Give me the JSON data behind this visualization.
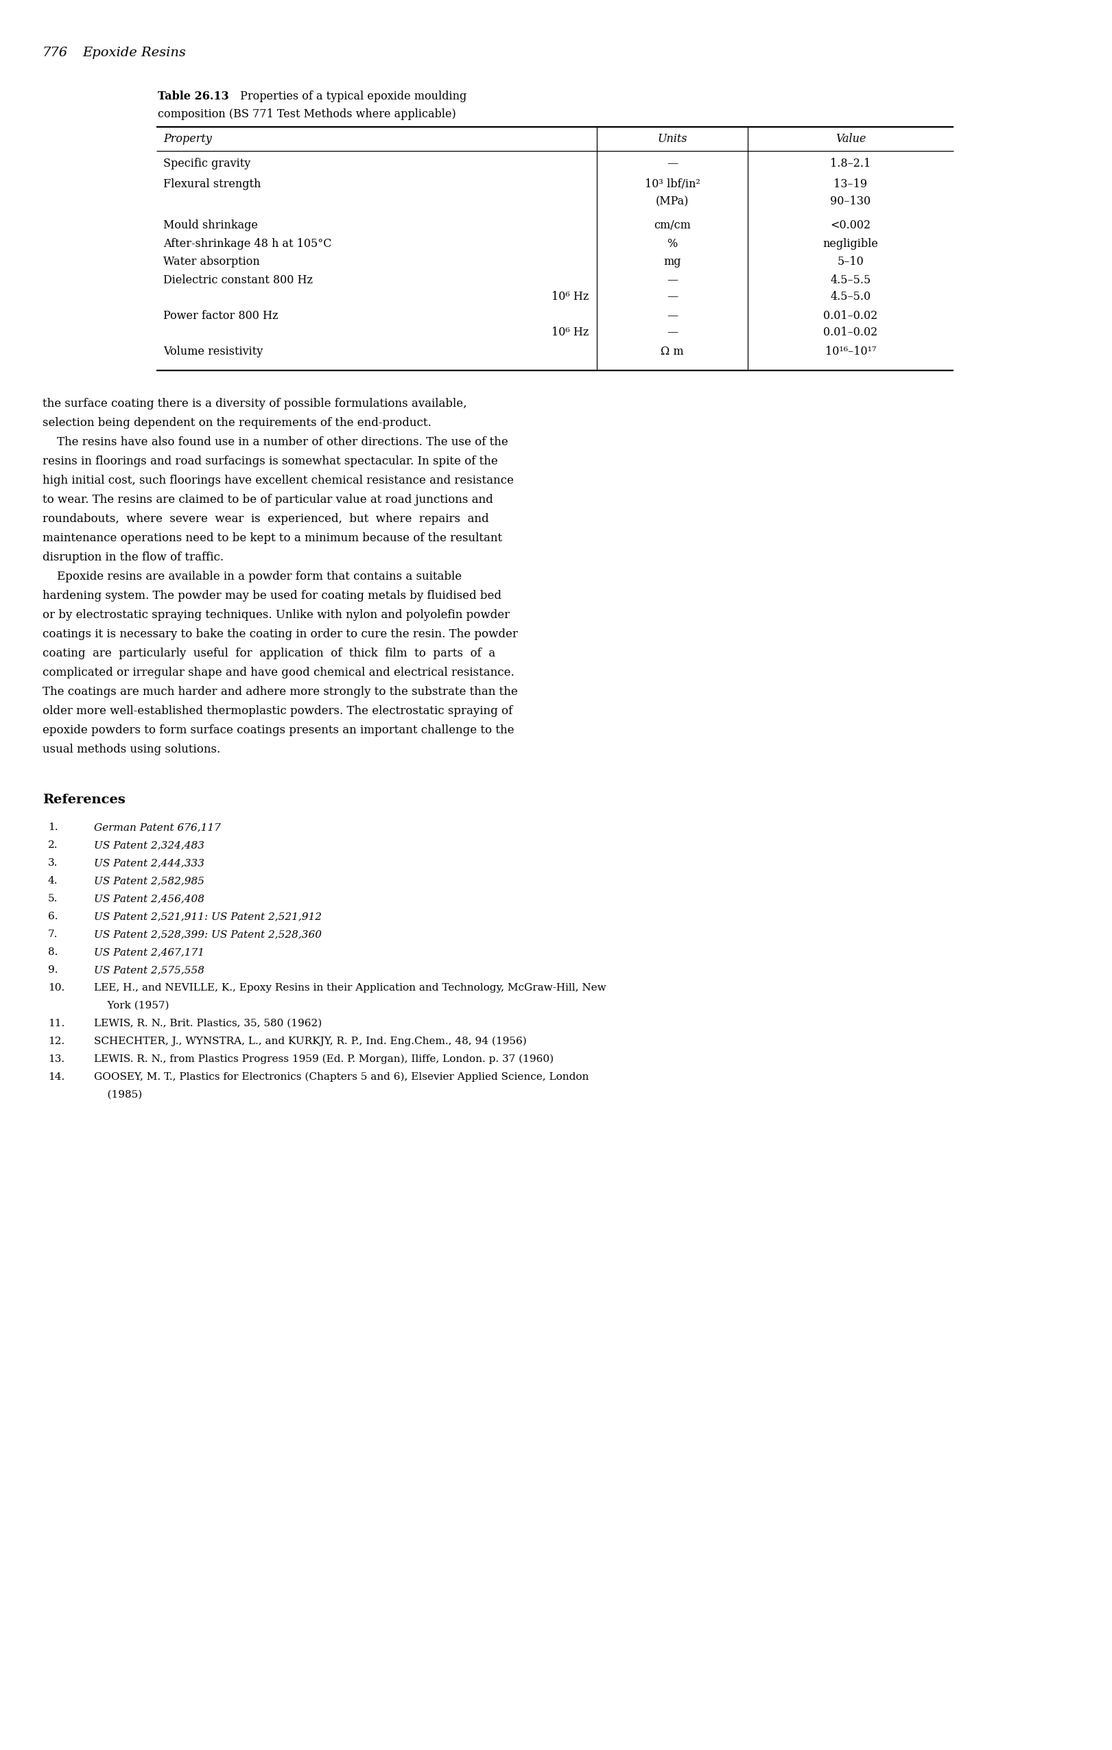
{
  "page_header_num": "776",
  "page_header_title": "Epoxide Resins",
  "table_title": "Table 26.13",
  "table_title_rest": " Properties of a typical epoxide moulding",
  "table_title_line2": "composition (BS 771 Test Methods where applicable)",
  "col_headers": [
    "Property",
    "Units",
    "Value"
  ],
  "table_rows": [
    {
      "prop": "Specific gravity",
      "prop_indent": false,
      "unit": "—",
      "val": "1.8–2.1"
    },
    {
      "prop": "Flexural strength",
      "prop_indent": false,
      "unit": "10³ lbf/in²",
      "val": "13–19"
    },
    {
      "prop": "",
      "prop_indent": false,
      "unit": "(MPa)",
      "val": "90–130"
    },
    {
      "prop": "Mould shrinkage",
      "prop_indent": false,
      "unit": "cm/cm",
      "val": "<0.002"
    },
    {
      "prop": "After-shrinkage 48 h at 105°C",
      "prop_indent": false,
      "unit": "%",
      "val": "negligible"
    },
    {
      "prop": "Water absorption",
      "prop_indent": false,
      "unit": "mg",
      "val": "5–10"
    },
    {
      "prop": "Dielectric constant 800 Hz",
      "prop_indent": false,
      "unit": "—",
      "val": "4.5–5.5"
    },
    {
      "prop": "10⁶ Hz",
      "prop_indent": true,
      "unit": "—",
      "val": "4.5–5.0"
    },
    {
      "prop": "Power factor 800 Hz",
      "prop_indent": false,
      "unit": "—",
      "val": "0.01–0.02"
    },
    {
      "prop": "10⁶ Hz",
      "prop_indent": true,
      "unit": "—",
      "val": "0.01–0.02"
    },
    {
      "prop": "Volume resistivity",
      "prop_indent": false,
      "unit": "Ω m",
      "val": "10¹⁶–10¹⁷"
    }
  ],
  "body_paragraphs": [
    "the surface coating there is a diversity of possible formulations available, selection being dependent on the requirements of the end-product.",
    "\tThe resins have also found use in a number of other directions. The use of the resins in floorings and road surfacings is somewhat spectacular. In spite of the high initial cost, such floorings have excellent chemical resistance and resistance to wear. The resins are claimed to be of particular value at road junctions and roundabouts, where severe wear is experienced, but where repairs and maintenance operations need to be kept to a minimum because of the resultant disruption in the flow of traffic.",
    "\tEpoxide resins are available in a powder form that contains a suitable hardening system. The powder may be used for coating metals by fluidised bed or by electrostatic spraying techniques. Unlike with nylon and polyolefin powder coatings it is necessary to bake the coating in order to cure the resin. The powder coating are particularly useful for application of thick film to parts of a complicated or irregular shape and have good chemical and electrical resistance. The coatings are much harder and adhere more strongly to the substrate than the older more well-established thermoplastic powders. The electrostatic spraying of epoxide powders to form surface coatings presents an important challenge to the usual methods using solutions."
  ],
  "ref_header": "References",
  "references": [
    [
      " 1.",
      "German Patent",
      " 676,117",
      ""
    ],
    [
      " 2.",
      "US Patent",
      " 2,324,483",
      ""
    ],
    [
      " 3.",
      "US Patent",
      " 2,444,333",
      ""
    ],
    [
      " 4.",
      "US Patent",
      " 2,582,985",
      ""
    ],
    [
      " 5.",
      "US Patent",
      " 2,456,408",
      ""
    ],
    [
      " 6.",
      "US Patent",
      " 2,521,911: ",
      "US Patent 2,521,912"
    ],
    [
      " 7.",
      "US Patent",
      " 2,528,399: ",
      "US Patent 2,528,360"
    ],
    [
      " 8.",
      "US Patent",
      " 2,467,171",
      ""
    ],
    [
      " 9.",
      "US Patent",
      " 2,575,558",
      ""
    ],
    [
      "10.",
      "LEE_NEVILLE",
      "",
      ""
    ],
    [
      "11.",
      "LEWIS_11",
      "",
      ""
    ],
    [
      "12.",
      "SCHECHTER",
      "",
      ""
    ],
    [
      "13.",
      "LEWIS_13",
      "",
      ""
    ],
    [
      "14.",
      "GOOSEY",
      "",
      ""
    ]
  ],
  "bg_color": "#ffffff",
  "text_color": "#000000"
}
